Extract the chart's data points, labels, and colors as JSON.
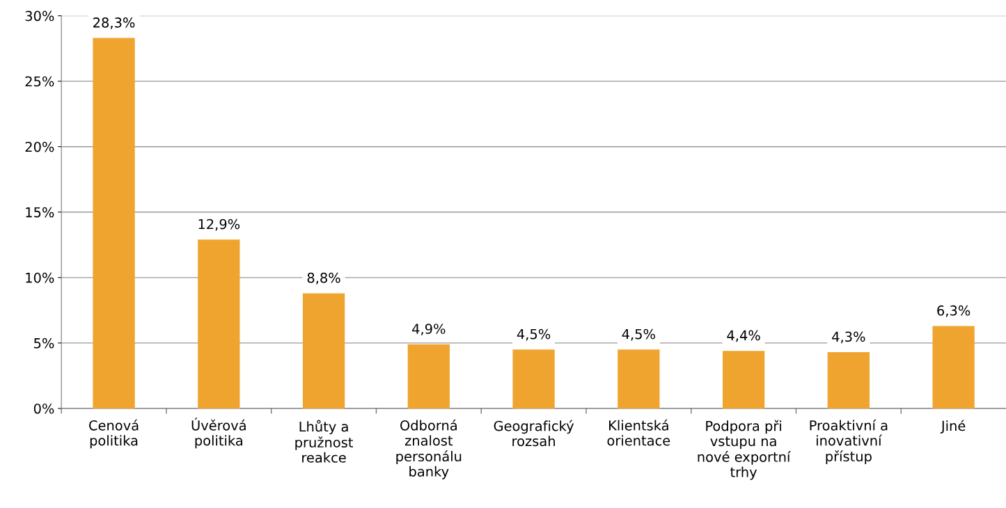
{
  "chart_data": {
    "type": "bar",
    "categories": [
      "Cenová\npolitika",
      "Úvěrová\npolitika",
      "Lhůty a\npružnost\nreakce",
      "Odborná\nznalost\npersonálu\nbanky",
      "Geografický\nrozsah",
      "Klientská\norientace",
      "Podpora při\nvstupu na\nnové exportní\ntrhy",
      "Proaktivní a\ninovativní\npřístup",
      "Jiné"
    ],
    "values": [
      28.3,
      12.9,
      8.8,
      4.9,
      4.5,
      4.5,
      4.4,
      4.3,
      6.3
    ],
    "value_labels": [
      "28,3%",
      "12,9%",
      "8,8%",
      "4,9%",
      "4,5%",
      "4,5%",
      "4,4%",
      "4,3%",
      "6,3%"
    ],
    "color": "#f0a430",
    "ylim": [
      0,
      30
    ],
    "yticks": [
      {
        "value": 0,
        "label": "0%"
      },
      {
        "value": 5,
        "label": "5%"
      },
      {
        "value": 10,
        "label": "10%"
      },
      {
        "value": 15,
        "label": "15%"
      },
      {
        "value": 20,
        "label": "20%"
      },
      {
        "value": 25,
        "label": "25%"
      },
      {
        "value": 30,
        "label": "30%"
      }
    ],
    "grid": "y",
    "legend": false
  }
}
